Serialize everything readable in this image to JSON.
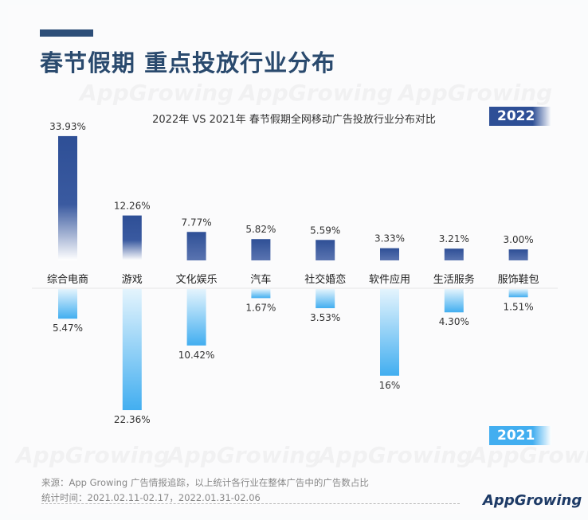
{
  "header": {
    "title": "春节假期 重点投放行业分布"
  },
  "watermark": "AppGrowing",
  "chart_data": {
    "type": "bar",
    "title": "2022年 VS 2021年 春节假期全网移动广告投放行业分布对比",
    "categories": [
      "综合电商",
      "游戏",
      "文化娱乐",
      "汽车",
      "社交婚恋",
      "软件应用",
      "生活服务",
      "服饰鞋包"
    ],
    "series": [
      {
        "name": "2022",
        "values": [
          33.93,
          12.26,
          7.77,
          5.82,
          5.59,
          3.33,
          3.21,
          3.0
        ],
        "labels": [
          "33.93%",
          "12.26%",
          "7.77%",
          "5.82%",
          "5.59%",
          "3.33%",
          "3.21%",
          "3.00%"
        ],
        "color": "#2e4f96"
      },
      {
        "name": "2021",
        "values": [
          5.47,
          22.36,
          10.42,
          1.67,
          3.53,
          16,
          4.3,
          1.51
        ],
        "labels": [
          "5.47%",
          "22.36%",
          "10.42%",
          "1.67%",
          "3.53%",
          "16%",
          "4.30%",
          "1.51%"
        ],
        "color": "#42aef0"
      }
    ],
    "legend": [
      "2022",
      "2021"
    ]
  },
  "footer": {
    "source": "来源：App Growing 广告情报追踪，以上统计各行业在整体广告中的广告数占比",
    "period": "统计时间：2021.02.11-02.17，2022.01.31-02.06",
    "logo": "AppGrowing"
  }
}
